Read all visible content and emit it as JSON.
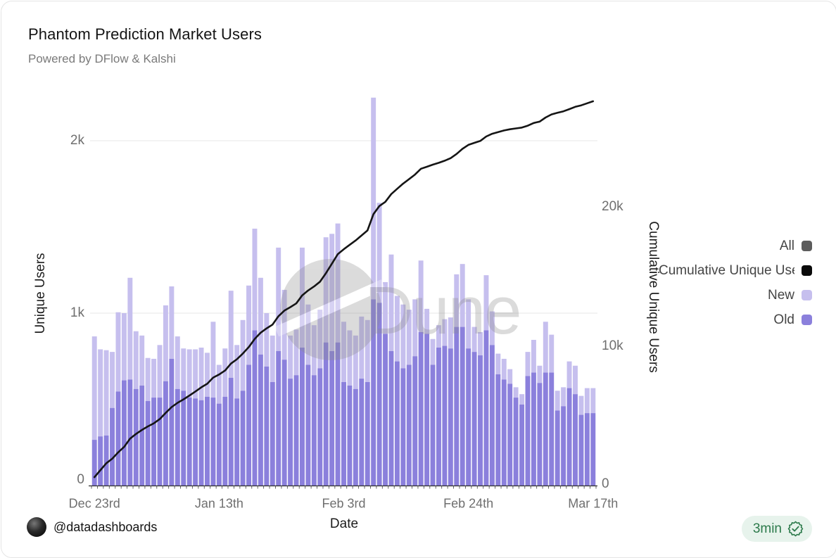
{
  "card": {
    "title": "Phantom Prediction Market Users",
    "subtitle": "Powered by DFlow & Kalshi"
  },
  "legend": {
    "items": [
      {
        "label": "All",
        "color": "#5c5c5c",
        "truncate": false
      },
      {
        "label": "Cumulative Unique Users",
        "color": "#0a0a0a",
        "truncate": true
      },
      {
        "label": "New",
        "color": "#c6bfee",
        "truncate": false
      },
      {
        "label": "Old",
        "color": "#8b80dc",
        "truncate": false
      }
    ]
  },
  "watermark": {
    "text": "Dune"
  },
  "footer": {
    "handle": "@datadashboards",
    "badge_label": "3min"
  },
  "chart_data": {
    "type": "bar",
    "title": "Phantom Prediction Market Users",
    "xlabel": "Date",
    "x_axis": {
      "n_days": 85,
      "start": "Dec 23rd",
      "end": "Mar 17th",
      "tick_labels": [
        "Dec 23rd",
        "Jan 13th",
        "Feb 3rd",
        "Feb 24th",
        "Mar 17th"
      ],
      "tick_day_indices": [
        0,
        21,
        42,
        63,
        84
      ]
    },
    "y_left": {
      "label": "Unique Users",
      "tick_labels": [
        "0",
        "1k",
        "2k"
      ],
      "tick_values": [
        0,
        1000,
        2000
      ],
      "ylim": [
        0,
        2280
      ]
    },
    "y_right": {
      "label": "Cumulative Unique Users",
      "tick_labels": [
        "0",
        "10k",
        "20k"
      ],
      "tick_values": [
        0,
        10000,
        20000
      ],
      "ylim": [
        0,
        28000
      ]
    },
    "grid": "horizontal",
    "legend_position": "right",
    "colors": {
      "new": "#c6bfee",
      "old": "#8b80dc",
      "line": "#151515",
      "grid": "#e7e7e7",
      "watermark": "#8a8a8a",
      "axis": "#2f2f2f"
    },
    "series": [
      {
        "name": "New",
        "type": "bar",
        "stacked": true,
        "values": [
          600,
          505,
          495,
          325,
          460,
          390,
          590,
          335,
          290,
          250,
          225,
          305,
          440,
          420,
          305,
          245,
          280,
          285,
          305,
          255,
          440,
          225,
          280,
          505,
          310,
          410,
          460,
          590,
          445,
          310,
          270,
          600,
          405,
          250,
          265,
          580,
          350,
          290,
          340,
          610,
          680,
          690,
          350,
          320,
          310,
          360,
          360,
          1170,
          580,
          300,
          560,
          380,
          370,
          320,
          330,
          415,
          145,
          150,
          130,
          155,
          180,
          305,
          365,
          285,
          145,
          135,
          320,
          195,
          120,
          120,
          85,
          60,
          60,
          140,
          190,
          100,
          295,
          220,
          115,
          110,
          155,
          165,
          110,
          145,
          145
        ]
      },
      {
        "name": "Old",
        "type": "bar",
        "stacked": true,
        "values": [
          265,
          285,
          290,
          450,
          545,
          610,
          615,
          560,
          580,
          490,
          510,
          510,
          605,
          735,
          560,
          550,
          510,
          505,
          495,
          515,
          510,
          475,
          515,
          625,
          505,
          550,
          700,
          900,
          760,
          690,
          600,
          780,
          730,
          620,
          640,
          800,
          700,
          640,
          680,
          830,
          780,
          830,
          600,
          580,
          560,
          620,
          600,
          1080,
          1060,
          880,
          780,
          720,
          680,
          700,
          750,
          890,
          880,
          700,
          800,
          810,
          795,
          920,
          920,
          795,
          775,
          755,
          900,
          815,
          645,
          615,
          590,
          510,
          470,
          635,
          655,
          595,
          655,
          655,
          435,
          460,
          565,
          530,
          410,
          420,
          420
        ]
      },
      {
        "name": "Cumulative Unique Users",
        "type": "line",
        "axis": "right",
        "derived": "cumulative_sum_of_New"
      }
    ]
  }
}
